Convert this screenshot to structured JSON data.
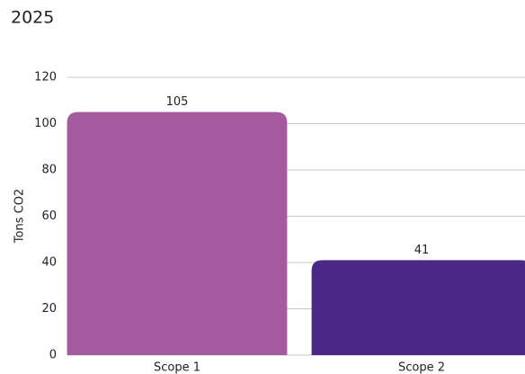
{
  "chart_data": {
    "type": "bar",
    "title": "2025",
    "y_label": "Tons CO2",
    "categories": [
      "Scope 1",
      "Scope 2"
    ],
    "values": [
      105,
      41
    ],
    "colors": [
      "#a45a9f",
      "#4a2885"
    ],
    "ylim": [
      0,
      120
    ],
    "yticks": [
      0,
      20,
      40,
      60,
      80,
      100,
      120
    ],
    "grid": true
  }
}
